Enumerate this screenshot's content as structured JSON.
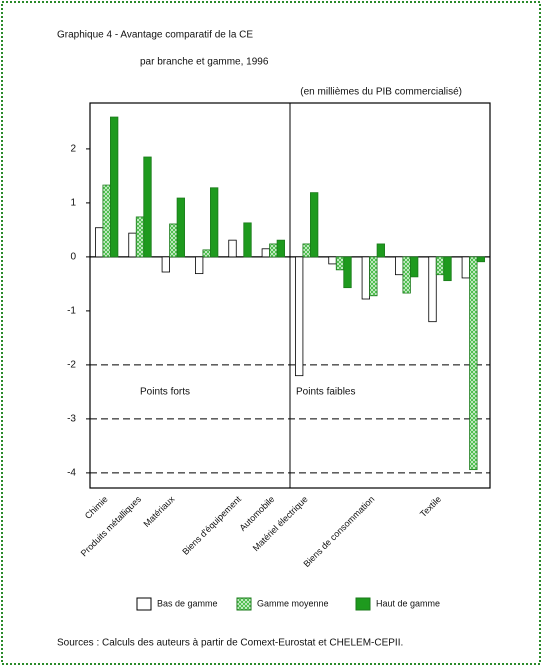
{
  "chart_data": {
    "type": "bar",
    "title": "Graphique 4 - Avantage comparatif de la CE",
    "subtitle": "par branche et gamme, 1996",
    "unit_note": "(en millièmes du PIB commercialisé)",
    "source": "Sources : Calculs des auteurs à partir de Comext-Eurostat et CHELEM-CEPII.",
    "section_labels": [
      "Points forts",
      "Points faibles"
    ],
    "categories": [
      "Chimie",
      "Produits métalliques",
      "Matériaux",
      null,
      "Biens d'équipement",
      "Automobile",
      "Matériel électrique",
      null,
      "Biens de consommation",
      null,
      "Textile",
      null
    ],
    "series": [
      {
        "name": "Bas de gamme",
        "color": "#ffffff",
        "values": [
          0.54,
          0.44,
          -0.28,
          -0.31,
          0.31,
          0.15,
          -2.2,
          -0.13,
          -0.78,
          -0.33,
          -1.2,
          -0.39
        ]
      },
      {
        "name": "Gamme moyenne",
        "color": "#7fd07f",
        "values": [
          1.33,
          0.74,
          0.61,
          0.13,
          0.0,
          0.24,
          0.24,
          -0.24,
          -0.72,
          -0.67,
          -0.33,
          -3.94
        ]
      },
      {
        "name": "Haut de gamme",
        "color": "#1e9a1e",
        "values": [
          2.59,
          1.85,
          1.09,
          1.28,
          0.63,
          0.31,
          1.19,
          -0.57,
          0.24,
          -0.37,
          -0.44,
          -0.09
        ]
      }
    ],
    "ylim": [
      -4.28,
      2.85
    ],
    "yticks": [
      2,
      1,
      0,
      -1,
      -2,
      -3,
      -4
    ],
    "reference_lines": [
      -2,
      -3,
      -4
    ]
  }
}
